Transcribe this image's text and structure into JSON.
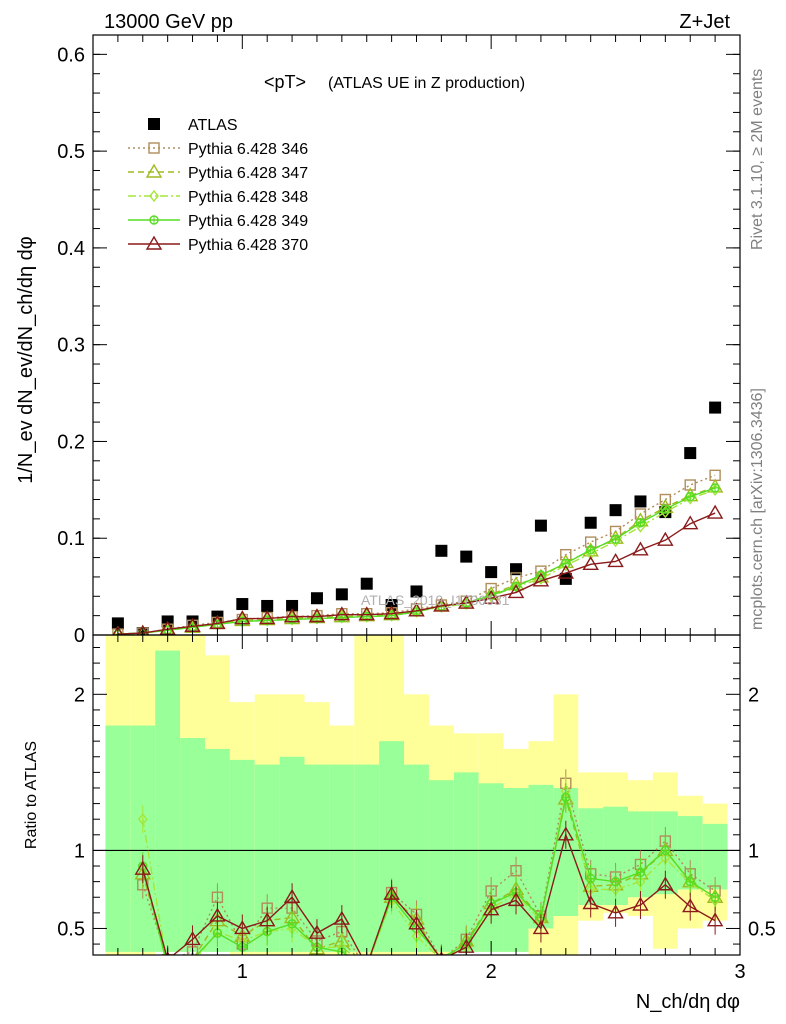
{
  "header": {
    "left": "13000 GeV pp",
    "right": "Z+Jet"
  },
  "plot_title": {
    "main": "<pT>",
    "sub": "(ATLAS UE in Z production)"
  },
  "side_notes": {
    "rivet": "Rivet 3.1.10, ≥ 2M events",
    "mcplots": "mcplots.cern.ch [arXiv:1306.3436]"
  },
  "watermark": "ATLAS_2019_I1736531",
  "colors": {
    "atlas": "#000000",
    "p346": "#b08d5b",
    "p347": "#9dbb1e",
    "p348": "#a6e63a",
    "p349": "#55dd22",
    "p370": "#8b1a1a",
    "band_outer": "#ffff99",
    "band_inner": "#99ff99"
  },
  "chart_data": [
    {
      "type": "scatter",
      "name": "main",
      "ylabel": "1/N_ev dN_ev/dN_ch/dη dφ",
      "ylim": [
        0,
        0.62
      ],
      "xlim": [
        0.4,
        3.0
      ],
      "yticks": [
        0,
        0.1,
        0.2,
        0.3,
        0.4,
        0.5,
        0.6
      ],
      "ytick_labels": [
        "0",
        "0.1",
        "0.2",
        "0.3",
        "0.4",
        "0.5",
        "0.6"
      ],
      "legend": {
        "placement": "top-left",
        "entries": [
          {
            "key": "atlas",
            "label": "ATLAS"
          },
          {
            "key": "p346",
            "label": "Pythia 6.428 346"
          },
          {
            "key": "p347",
            "label": "Pythia 6.428 347"
          },
          {
            "key": "p348",
            "label": "Pythia 6.428 348"
          },
          {
            "key": "p349",
            "label": "Pythia 6.428 349"
          },
          {
            "key": "p370",
            "label": "Pythia 6.428 370"
          }
        ]
      },
      "x": [
        0.5,
        0.6,
        0.7,
        0.8,
        0.9,
        1.0,
        1.1,
        1.2,
        1.3,
        1.4,
        1.5,
        1.6,
        1.7,
        1.8,
        1.9,
        2.0,
        2.1,
        2.2,
        2.3,
        2.4,
        2.5,
        2.6,
        2.7,
        2.8,
        2.9
      ],
      "series": [
        {
          "key": "atlas",
          "marker": "square-filled",
          "line": "none",
          "values": [
            0.012,
            0.002,
            0.014,
            0.014,
            0.019,
            0.032,
            0.03,
            0.03,
            0.038,
            0.042,
            0.053,
            0.031,
            0.045,
            0.087,
            0.081,
            0.065,
            0.068,
            0.113,
            0.058,
            0.116,
            0.129,
            0.138,
            0.127,
            0.188,
            0.235
          ]
        },
        {
          "key": "p346",
          "marker": "square-open",
          "line": "dotted",
          "values": [
            0.001,
            0.002,
            0.006,
            0.01,
            0.013,
            0.016,
            0.018,
            0.019,
            0.02,
            0.022,
            0.022,
            0.023,
            0.027,
            0.031,
            0.035,
            0.048,
            0.059,
            0.066,
            0.083,
            0.096,
            0.107,
            0.125,
            0.14,
            0.155,
            0.165
          ]
        },
        {
          "key": "p347",
          "marker": "triangle-open",
          "line": "dashed",
          "values": [
            0.001,
            0.002,
            0.005,
            0.008,
            0.012,
            0.015,
            0.016,
            0.017,
            0.018,
            0.019,
            0.02,
            0.021,
            0.025,
            0.03,
            0.033,
            0.042,
            0.052,
            0.06,
            0.075,
            0.087,
            0.1,
            0.118,
            0.132,
            0.144,
            0.153
          ]
        },
        {
          "key": "p348",
          "marker": "diamond",
          "line": "dashdot",
          "values": [
            0.001,
            0.002,
            0.005,
            0.008,
            0.011,
            0.014,
            0.015,
            0.016,
            0.017,
            0.018,
            0.019,
            0.02,
            0.024,
            0.029,
            0.032,
            0.04,
            0.05,
            0.058,
            0.072,
            0.084,
            0.097,
            0.112,
            0.127,
            0.141,
            0.15
          ]
        },
        {
          "key": "p349",
          "marker": "circle-cross",
          "line": "solid",
          "values": [
            0.001,
            0.002,
            0.005,
            0.008,
            0.011,
            0.014,
            0.015,
            0.016,
            0.017,
            0.018,
            0.019,
            0.02,
            0.024,
            0.03,
            0.033,
            0.041,
            0.05,
            0.062,
            0.074,
            0.088,
            0.099,
            0.116,
            0.13,
            0.143,
            0.152
          ]
        },
        {
          "key": "p370",
          "marker": "triangle-open",
          "line": "solid",
          "values": [
            0.001,
            0.002,
            0.006,
            0.009,
            0.012,
            0.017,
            0.017,
            0.019,
            0.019,
            0.021,
            0.021,
            0.022,
            0.025,
            0.03,
            0.033,
            0.038,
            0.044,
            0.056,
            0.064,
            0.073,
            0.076,
            0.088,
            0.098,
            0.115,
            0.126
          ]
        }
      ]
    },
    {
      "type": "line",
      "name": "ratio",
      "ylabel": "Ratio to ATLAS",
      "xlabel": "N_ch/dη dφ",
      "ylim": [
        0.33,
        2.38
      ],
      "xlim": [
        0.4,
        3.0
      ],
      "xticks": [
        1,
        2,
        3
      ],
      "xtick_labels": [
        "1",
        "2",
        "3"
      ],
      "yticks": [
        0.5,
        1,
        2
      ],
      "ytick_labels": [
        "0.5",
        "1",
        "2"
      ],
      "reference_line": 1,
      "bands": {
        "edges": [
          0.45,
          0.55,
          0.65,
          0.75,
          0.85,
          0.95,
          1.05,
          1.15,
          1.25,
          1.35,
          1.45,
          1.55,
          1.65,
          1.75,
          1.85,
          1.95,
          2.05,
          2.15,
          2.25,
          2.35,
          2.45,
          2.55,
          2.65,
          2.75,
          2.85,
          2.95
        ],
        "outer": [
          [
            0.2,
            3.0
          ],
          [
            0.2,
            3.0
          ],
          [
            0.35,
            2.6
          ],
          [
            0.35,
            2.4
          ],
          [
            0.35,
            2.25
          ],
          [
            0.3,
            1.95
          ],
          [
            0.3,
            2.0
          ],
          [
            0.3,
            2.0
          ],
          [
            0.3,
            1.95
          ],
          [
            0.3,
            1.8
          ],
          [
            0.3,
            3.0
          ],
          [
            0.3,
            3.0
          ],
          [
            0.3,
            2.0
          ],
          [
            0.3,
            1.8
          ],
          [
            0.35,
            1.75
          ],
          [
            0.35,
            1.75
          ],
          [
            0.35,
            1.65
          ],
          [
            0.33,
            1.7
          ],
          [
            0.33,
            2.0
          ],
          [
            0.55,
            1.5
          ],
          [
            0.6,
            1.5
          ],
          [
            0.58,
            1.45
          ],
          [
            0.37,
            1.5
          ],
          [
            0.5,
            1.35
          ],
          [
            0.55,
            1.3
          ]
        ],
        "inner": [
          [
            0.35,
            1.8
          ],
          [
            0.35,
            1.8
          ],
          [
            0.35,
            2.28
          ],
          [
            0.35,
            1.72
          ],
          [
            0.35,
            1.65
          ],
          [
            0.35,
            1.58
          ],
          [
            0.35,
            1.55
          ],
          [
            0.35,
            1.6
          ],
          [
            0.35,
            1.55
          ],
          [
            0.35,
            1.55
          ],
          [
            0.35,
            1.55
          ],
          [
            0.35,
            1.7
          ],
          [
            0.35,
            1.55
          ],
          [
            0.35,
            1.45
          ],
          [
            0.35,
            1.5
          ],
          [
            0.35,
            1.43
          ],
          [
            0.35,
            1.4
          ],
          [
            0.5,
            1.42
          ],
          [
            0.58,
            1.4
          ],
          [
            0.65,
            1.27
          ],
          [
            0.65,
            1.28
          ],
          [
            0.7,
            1.25
          ],
          [
            0.72,
            1.25
          ],
          [
            0.75,
            1.22
          ],
          [
            0.75,
            1.17
          ]
        ]
      },
      "x": [
        0.5,
        0.6,
        0.7,
        0.8,
        0.9,
        1.0,
        1.1,
        1.2,
        1.3,
        1.4,
        1.5,
        1.6,
        1.7,
        1.8,
        1.9,
        2.0,
        2.1,
        2.2,
        2.3,
        2.4,
        2.5,
        2.6,
        2.7,
        2.8,
        2.9
      ],
      "series": [
        {
          "key": "p346",
          "marker": "square-open",
          "line": "dotted",
          "values": [
            null,
            0.78,
            0.3,
            0.35,
            0.7,
            0.4,
            0.63,
            0.63,
            0.42,
            0.48,
            0.25,
            0.73,
            0.59,
            0.3,
            0.43,
            0.74,
            0.87,
            0.58,
            1.43,
            0.85,
            0.83,
            0.91,
            1.06,
            0.85,
            0.74
          ]
        },
        {
          "key": "p347",
          "marker": "triangle-open",
          "line": "dashed",
          "values": [
            null,
            0.85,
            0.28,
            0.3,
            0.55,
            0.45,
            0.55,
            0.57,
            0.37,
            0.42,
            0.25,
            0.7,
            0.56,
            0.28,
            0.42,
            0.66,
            0.75,
            0.57,
            1.33,
            0.77,
            0.78,
            0.85,
            1.0,
            0.8,
            0.7
          ]
        },
        {
          "key": "p348",
          "marker": "diamond",
          "line": "dashdot",
          "values": [
            null,
            1.2,
            0.25,
            0.28,
            0.48,
            0.42,
            0.48,
            0.5,
            0.38,
            0.38,
            0.26,
            0.68,
            0.45,
            0.3,
            0.38,
            0.63,
            0.72,
            0.55,
            1.38,
            0.75,
            0.75,
            0.8,
            0.95,
            0.79,
            0.68
          ]
        },
        {
          "key": "p349",
          "marker": "circle-cross",
          "line": "solid",
          "values": [
            null,
            0.9,
            0.25,
            0.3,
            0.47,
            0.38,
            0.48,
            0.53,
            0.38,
            0.35,
            0.26,
            0.7,
            0.5,
            0.31,
            0.4,
            0.66,
            0.73,
            0.57,
            1.34,
            0.82,
            0.8,
            0.86,
            1.0,
            0.8,
            0.7
          ]
        },
        {
          "key": "p370",
          "marker": "triangle-open",
          "line": "solid",
          "values": [
            null,
            0.88,
            0.3,
            0.43,
            0.58,
            0.5,
            0.55,
            0.7,
            0.47,
            0.56,
            0.26,
            0.72,
            0.53,
            0.3,
            0.38,
            0.62,
            0.68,
            0.5,
            1.1,
            0.66,
            0.6,
            0.65,
            0.78,
            0.64,
            0.55
          ]
        }
      ]
    }
  ]
}
